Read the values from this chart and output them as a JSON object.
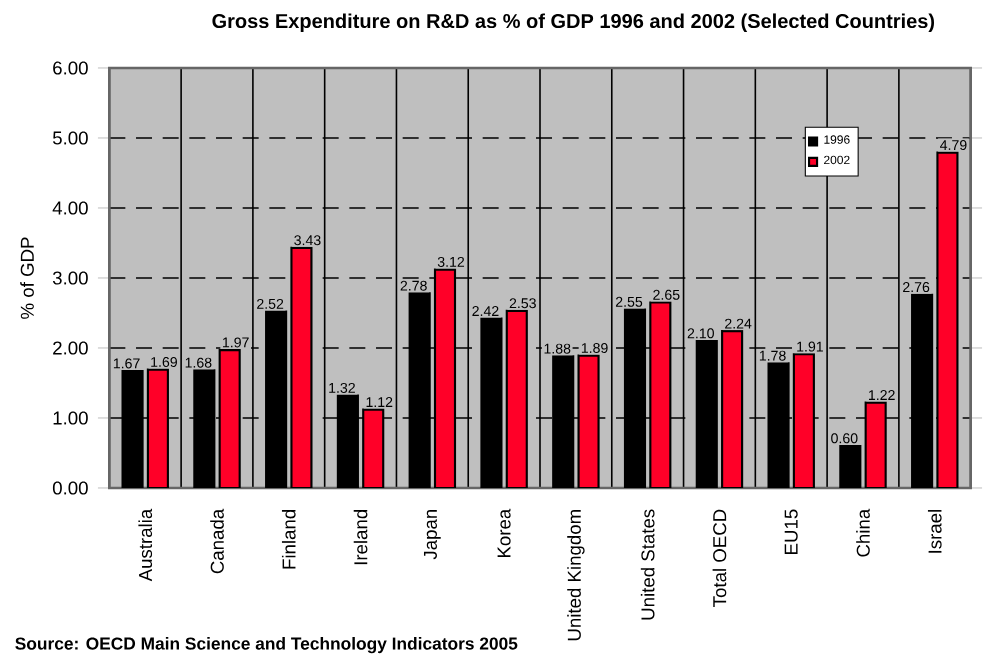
{
  "chart_data": {
    "type": "bar",
    "title": "Gross Expenditure on R&D as % of GDP 1996 and 2002 (Selected Countries)",
    "ylabel": "% of GDP",
    "categories": [
      "Australia",
      "Canada",
      "Finland",
      "Ireland",
      "Japan",
      "Korea",
      "United Kingdom",
      "United States",
      "Total OECD",
      "EU15",
      "China",
      "Israel"
    ],
    "series": [
      {
        "name": "1996",
        "color": "#000000",
        "values": [
          1.67,
          1.68,
          2.52,
          1.32,
          2.78,
          2.42,
          1.88,
          2.55,
          2.1,
          1.78,
          0.6,
          2.76
        ],
        "value_labels": [
          "1.67",
          "1.68",
          "2.52",
          "1.32",
          "2.78",
          "2.42",
          "1.88",
          "2.55",
          "2.10",
          "1.78",
          "0.60",
          "2.76"
        ]
      },
      {
        "name": "2002",
        "color": "#ff0028",
        "values": [
          1.69,
          1.97,
          3.43,
          1.12,
          3.12,
          2.53,
          1.89,
          2.65,
          2.24,
          1.91,
          1.22,
          4.79
        ],
        "value_labels": [
          "1.69",
          "1.97",
          "3.43",
          "1.12",
          "3.12",
          "2.53",
          "1.89",
          "2.65",
          "2.24",
          "1.91",
          "1.22",
          "4.79"
        ]
      }
    ],
    "ylim": [
      0,
      6
    ],
    "yticks": [
      {
        "value": 0,
        "label": "0.00"
      },
      {
        "value": 1,
        "label": "1.00"
      },
      {
        "value": 2,
        "label": "2.00"
      },
      {
        "value": 3,
        "label": "3.00"
      },
      {
        "value": 4,
        "label": "4.00"
      },
      {
        "value": 5,
        "label": "5.00"
      },
      {
        "value": 6,
        "label": "6.00"
      }
    ],
    "grid": true,
    "legend": "top right",
    "annotations": [
      "Source: OECD Main Science and Technology Indicators 2005"
    ]
  }
}
